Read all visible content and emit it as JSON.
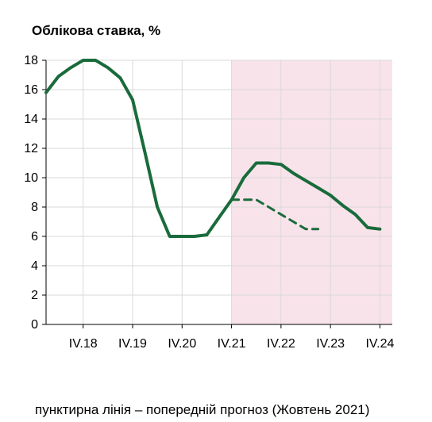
{
  "chart_data": {
    "type": "line",
    "title": "Облікова ставка, %",
    "footnote": "пунктирна лінія – попередній прогноз (Жовтень 2021)",
    "xlabel": "",
    "ylabel": "",
    "ylim": [
      0,
      18
    ],
    "y_ticks": [
      "0",
      "2",
      "4",
      "6",
      "8",
      "10",
      "12",
      "14",
      "16",
      "18"
    ],
    "x_ticks": [
      "IV.18",
      "IV.19",
      "IV.20",
      "IV.21",
      "IV.22",
      "IV.23",
      "IV.24"
    ],
    "x_tick_positions": [
      2018.75,
      2019.75,
      2020.75,
      2021.75,
      2022.75,
      2023.75,
      2024.75
    ],
    "xlim": [
      2018.0,
      2025.0
    ],
    "grid": true,
    "forecast_shading": {
      "from": 2021.75,
      "to": 2025.0,
      "color": "#f9e3ea"
    },
    "series": [
      {
        "style": "solid",
        "color": "#1a6b3c",
        "x": [
          2018.0,
          2018.25,
          2018.5,
          2018.75,
          2019.0,
          2019.25,
          2019.5,
          2019.75,
          2020.0,
          2020.25,
          2020.5,
          2020.75,
          2021.0,
          2021.25,
          2021.5,
          2021.75,
          2022.0,
          2022.25,
          2022.5,
          2022.75,
          2023.0,
          2023.25,
          2023.5,
          2023.75,
          2024.0,
          2024.25,
          2024.5,
          2024.75
        ],
        "values": [
          15.8,
          16.9,
          17.5,
          18.0,
          18.0,
          17.5,
          16.8,
          15.3,
          11.7,
          8.0,
          6.0,
          6.0,
          6.0,
          6.1,
          7.3,
          8.5,
          10.0,
          11.0,
          11.0,
          10.9,
          10.3,
          9.8,
          9.3,
          8.8,
          8.1,
          7.5,
          6.6,
          6.5
        ]
      },
      {
        "style": "dashed",
        "color": "#1a6b3c",
        "x": [
          2021.75,
          2022.0,
          2022.25,
          2022.5,
          2022.75,
          2023.0,
          2023.25,
          2023.5
        ],
        "values": [
          8.5,
          8.5,
          8.5,
          8.0,
          7.5,
          7.0,
          6.5,
          6.5
        ]
      }
    ]
  }
}
